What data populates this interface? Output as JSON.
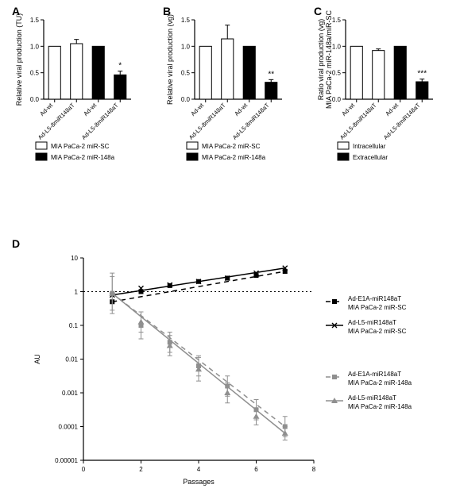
{
  "panelA": {
    "label": "A",
    "type": "bar",
    "ylabel": "Relative viral production (TU)",
    "categories": [
      "Ad-wt",
      "Ad-L5-8miR148aT",
      "Ad-wt",
      "Ad-L5-8miR148aT"
    ],
    "values": [
      1.0,
      1.05,
      1.0,
      0.46
    ],
    "errors": [
      0.0,
      0.08,
      0.0,
      0.07
    ],
    "bar_colors": [
      "#ffffff",
      "#ffffff",
      "#000000",
      "#000000"
    ],
    "ylim": [
      0,
      1.5
    ],
    "ytick_step": 0.5,
    "bar_width": 0.55,
    "axis_color": "#000000",
    "legend": [
      {
        "label": "MIA PaCa-2 miR-SC",
        "fill": "#ffffff"
      },
      {
        "label": "MIA PaCa-2 miR-148a",
        "fill": "#000000"
      }
    ],
    "sig": [
      {
        "bar": 3,
        "text": "*"
      }
    ]
  },
  "panelB": {
    "label": "B",
    "type": "bar",
    "ylabel": "Relative viral production (vg)",
    "categories": [
      "Ad-wt",
      "Ad-L5-8miR148aT",
      "Ad-wt",
      "Ad-L5-8miR148aT"
    ],
    "values": [
      1.0,
      1.14,
      1.0,
      0.32
    ],
    "errors": [
      0.0,
      0.26,
      0.0,
      0.05
    ],
    "bar_colors": [
      "#ffffff",
      "#ffffff",
      "#000000",
      "#000000"
    ],
    "ylim": [
      0,
      1.5
    ],
    "ytick_step": 0.5,
    "bar_width": 0.55,
    "axis_color": "#000000",
    "legend": [
      {
        "label": "MIA PaCa-2 miR-SC",
        "fill": "#ffffff"
      },
      {
        "label": "MIA PaCa-2 miR-148a",
        "fill": "#000000"
      }
    ],
    "sig": [
      {
        "bar": 3,
        "text": "**"
      }
    ]
  },
  "panelC": {
    "label": "C",
    "type": "bar",
    "ylabel": "Ratio viral production (vg)\nMIA PaCa-2 miR-148a/miR-SC",
    "categories": [
      "Ad-wt",
      "Ad-L5-8miR148aT",
      "Ad-wt",
      "Ad-L5-8miR148aT"
    ],
    "values": [
      1.0,
      0.92,
      1.0,
      0.33
    ],
    "errors": [
      0.0,
      0.03,
      0.0,
      0.05
    ],
    "bar_colors": [
      "#ffffff",
      "#ffffff",
      "#000000",
      "#000000"
    ],
    "ylim": [
      0,
      1.5
    ],
    "ytick_step": 0.5,
    "bar_width": 0.55,
    "axis_color": "#000000",
    "legend": [
      {
        "label": "Intracellular",
        "fill": "#ffffff"
      },
      {
        "label": "Extracellular",
        "fill": "#000000"
      }
    ],
    "sig": [
      {
        "bar": 3,
        "text": "***"
      }
    ]
  },
  "panelD": {
    "label": "D",
    "type": "line",
    "ylabel": "AU",
    "xlabel": "Passages",
    "xlim": [
      0,
      8
    ],
    "xtick_step": 2,
    "ytick_labels": [
      "0.00001",
      "0.0001",
      "0.001",
      "0.01",
      "0.1",
      "1",
      "10"
    ],
    "ytick_log": [
      -5,
      -4,
      -3,
      -2,
      -1,
      0,
      1
    ],
    "hline_log": 0,
    "axis_color": "#000000",
    "series": [
      {
        "name": "Ad-E1A-miR148aT MIA PaCa-2 miR-SC",
        "color": "#000000",
        "dash": "6 5",
        "marker": "square",
        "x": [
          1,
          2,
          3,
          4,
          5,
          6,
          7
        ],
        "y_log": [
          -0.3,
          0.0,
          0.18,
          0.3,
          0.4,
          0.48,
          0.6
        ],
        "err_log": [
          0.0,
          0.0,
          0.0,
          0.0,
          0.0,
          0.0,
          0.0
        ]
      },
      {
        "name": "Ad-L5-miR148aT MIA PaCa-2 miR-SC",
        "color": "#000000",
        "dash": "",
        "marker": "x",
        "x": [
          1,
          2,
          3,
          4,
          5,
          6,
          7
        ],
        "y_log": [
          -0.1,
          0.1,
          0.2,
          0.3,
          0.4,
          0.55,
          0.7
        ],
        "err_log": [
          0.0,
          0.0,
          0.0,
          0.0,
          0.0,
          0.0,
          0.0
        ]
      },
      {
        "name": "Ad-E1A-miR148aT MIA PaCa-2 miR-148a",
        "color": "#8f8f8f",
        "dash": "6 5",
        "marker": "square",
        "x": [
          1,
          2,
          3,
          4,
          5,
          6,
          7
        ],
        "y_log": [
          -0.05,
          -1.0,
          -1.5,
          -2.2,
          -2.8,
          -3.5,
          -4.0
        ],
        "err_log": [
          0.6,
          0.4,
          0.3,
          0.3,
          0.3,
          0.3,
          0.3
        ]
      },
      {
        "name": "Ad-L5-miR148aT MIA PaCa-2 miR-148a",
        "color": "#8f8f8f",
        "dash": "",
        "marker": "triangle",
        "x": [
          1,
          2,
          3,
          4,
          5,
          6,
          7
        ],
        "y_log": [
          -0.05,
          -0.9,
          -1.6,
          -2.3,
          -3.0,
          -3.7,
          -4.2
        ],
        "err_log": [
          0.5,
          0.3,
          0.3,
          0.35,
          0.3,
          0.25,
          0.2
        ]
      }
    ],
    "legend_lines": [
      {
        "text1": "Ad-E1A-miR148aT",
        "text2": "MIA PaCa-2 miR-SC",
        "color": "#000000",
        "dash": "6 5",
        "marker": "square"
      },
      {
        "text1": "Ad-L5-miR148aT",
        "text2": "MIA PaCa-2 miR-SC",
        "color": "#000000",
        "dash": "",
        "marker": "x"
      },
      {
        "text1": "Ad-E1A-miR148aT",
        "text2": "MIA PaCa-2 miR-148a",
        "color": "#8f8f8f",
        "dash": "6 5",
        "marker": "square"
      },
      {
        "text1": "Ad-L5-miR148aT",
        "text2": "MIA PaCa-2 miR-148a",
        "color": "#8f8f8f",
        "dash": "",
        "marker": "triangle"
      }
    ]
  },
  "fonts": {
    "panel_label_pt": 14,
    "axis_label_pt": 9,
    "tick_pt": 8,
    "legend_pt": 8,
    "sig_pt": 10
  }
}
